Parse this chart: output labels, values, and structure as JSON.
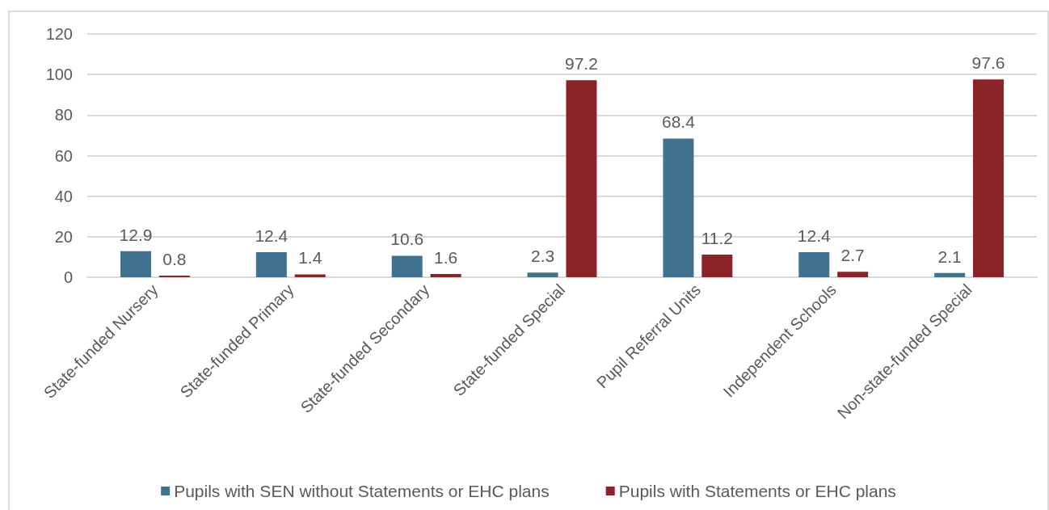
{
  "chart_data": {
    "type": "bar",
    "categories": [
      "State-funded Nursery",
      "State-funded Primary",
      "State-funded Secondary",
      "State-funded Special",
      "Pupil Referral Units",
      "Independent Schools",
      "Non-state-funded Special"
    ],
    "series": [
      {
        "name": "Pupils with SEN without Statements or EHC plans",
        "color": "#41728f",
        "values": [
          12.9,
          12.4,
          10.6,
          2.3,
          68.4,
          12.4,
          2.1
        ]
      },
      {
        "name": "Pupils with Statements or EHC plans",
        "color": "#8b2428",
        "values": [
          0.8,
          1.4,
          1.6,
          97.2,
          11.2,
          2.7,
          97.6
        ]
      }
    ],
    "ylim": [
      0,
      120
    ],
    "yticks": [
      0,
      20,
      40,
      60,
      80,
      100,
      120
    ],
    "grid": "y",
    "legend": "bottom",
    "data_labels": true
  }
}
